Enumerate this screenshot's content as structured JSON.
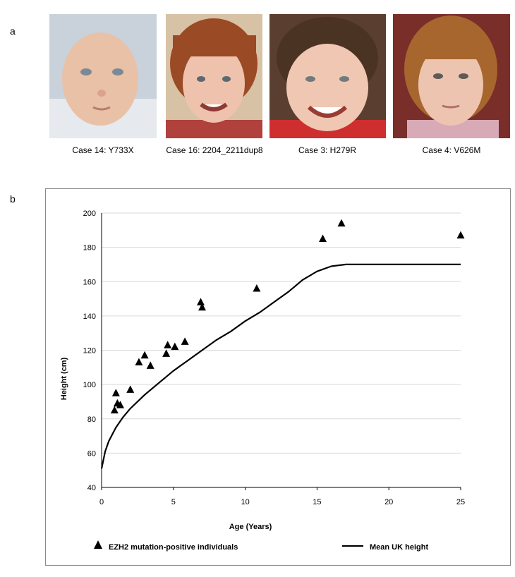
{
  "panels": {
    "a": "a",
    "b": "b"
  },
  "photos": [
    {
      "caption": "Case 14: Y733X"
    },
    {
      "caption": "Case 16: 2204_2211dup8"
    },
    {
      "caption": "Case 3: H279R"
    },
    {
      "caption": "Case 4: V626M"
    }
  ],
  "colors": {
    "marker": "#000000",
    "line": "#000000",
    "grid": "#d9d9d9",
    "frame": "#8a8a8a"
  },
  "chart_data": {
    "type": "scatter",
    "title": "",
    "xlabel": "Age (Years)",
    "ylabel": "Height (cm)",
    "xlim": [
      0,
      25
    ],
    "ylim": [
      40,
      200
    ],
    "xticks": [
      0,
      5,
      10,
      15,
      20,
      25
    ],
    "yticks": [
      40,
      60,
      80,
      100,
      120,
      140,
      160,
      180,
      200
    ],
    "grid": true,
    "legend_position": "bottom",
    "series": [
      {
        "name": "EZH2 mutation-positive individuals",
        "kind": "scatter",
        "marker": "triangle",
        "x": [
          0.9,
          1.0,
          1.1,
          1.3,
          2.0,
          2.6,
          3.0,
          3.4,
          4.5,
          4.6,
          5.1,
          5.8,
          6.9,
          7.0,
          10.8,
          15.4,
          16.7,
          25.0
        ],
        "y": [
          85,
          95,
          89,
          88,
          97,
          113,
          117,
          111,
          118,
          123,
          122,
          125,
          148,
          145,
          156,
          185,
          194,
          187
        ]
      },
      {
        "name": "Mean UK height",
        "kind": "line",
        "x": [
          0,
          0.25,
          0.5,
          1,
          1.5,
          2,
          3,
          4,
          5,
          6,
          7,
          8,
          9,
          10,
          11,
          12,
          13,
          14,
          15,
          16,
          17,
          18,
          20,
          22,
          25
        ],
        "y": [
          51,
          61,
          67,
          75,
          81,
          86,
          94,
          101,
          108,
          114,
          120,
          126,
          131,
          137,
          142,
          148,
          154,
          161,
          166,
          169,
          170,
          170,
          170,
          170,
          170
        ]
      }
    ]
  }
}
